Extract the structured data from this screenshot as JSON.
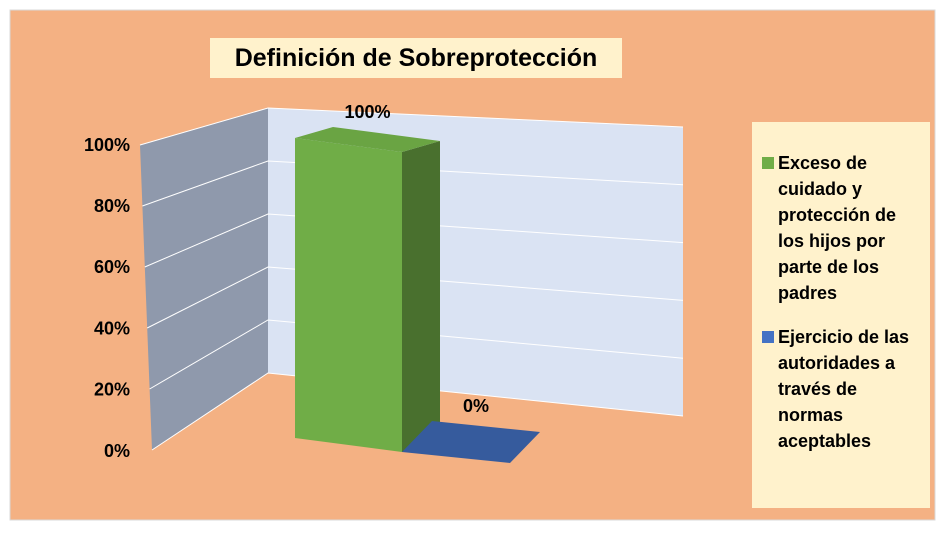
{
  "chart_data": {
    "type": "bar3d",
    "title": "Definición de Sobreprotección",
    "series": [
      {
        "name": "Exceso de cuidado y protección de los hijos por parte de los padres",
        "color": "#70AD47",
        "values": [
          100
        ],
        "value_labels": [
          "100%"
        ]
      },
      {
        "name": "Ejercicio de las autoridades a través de normas aceptables",
        "color": "#4472C4",
        "values": [
          0
        ],
        "value_labels": [
          "0%"
        ]
      }
    ],
    "ylim": [
      0,
      100
    ],
    "yticks": [
      {
        "value": 0,
        "label": "0%"
      },
      {
        "value": 20,
        "label": "20%"
      },
      {
        "value": 40,
        "label": "40%"
      },
      {
        "value": 60,
        "label": "60%"
      },
      {
        "value": 80,
        "label": "80%"
      },
      {
        "value": 100,
        "label": "100%"
      }
    ],
    "grid": true,
    "legend": "right"
  }
}
